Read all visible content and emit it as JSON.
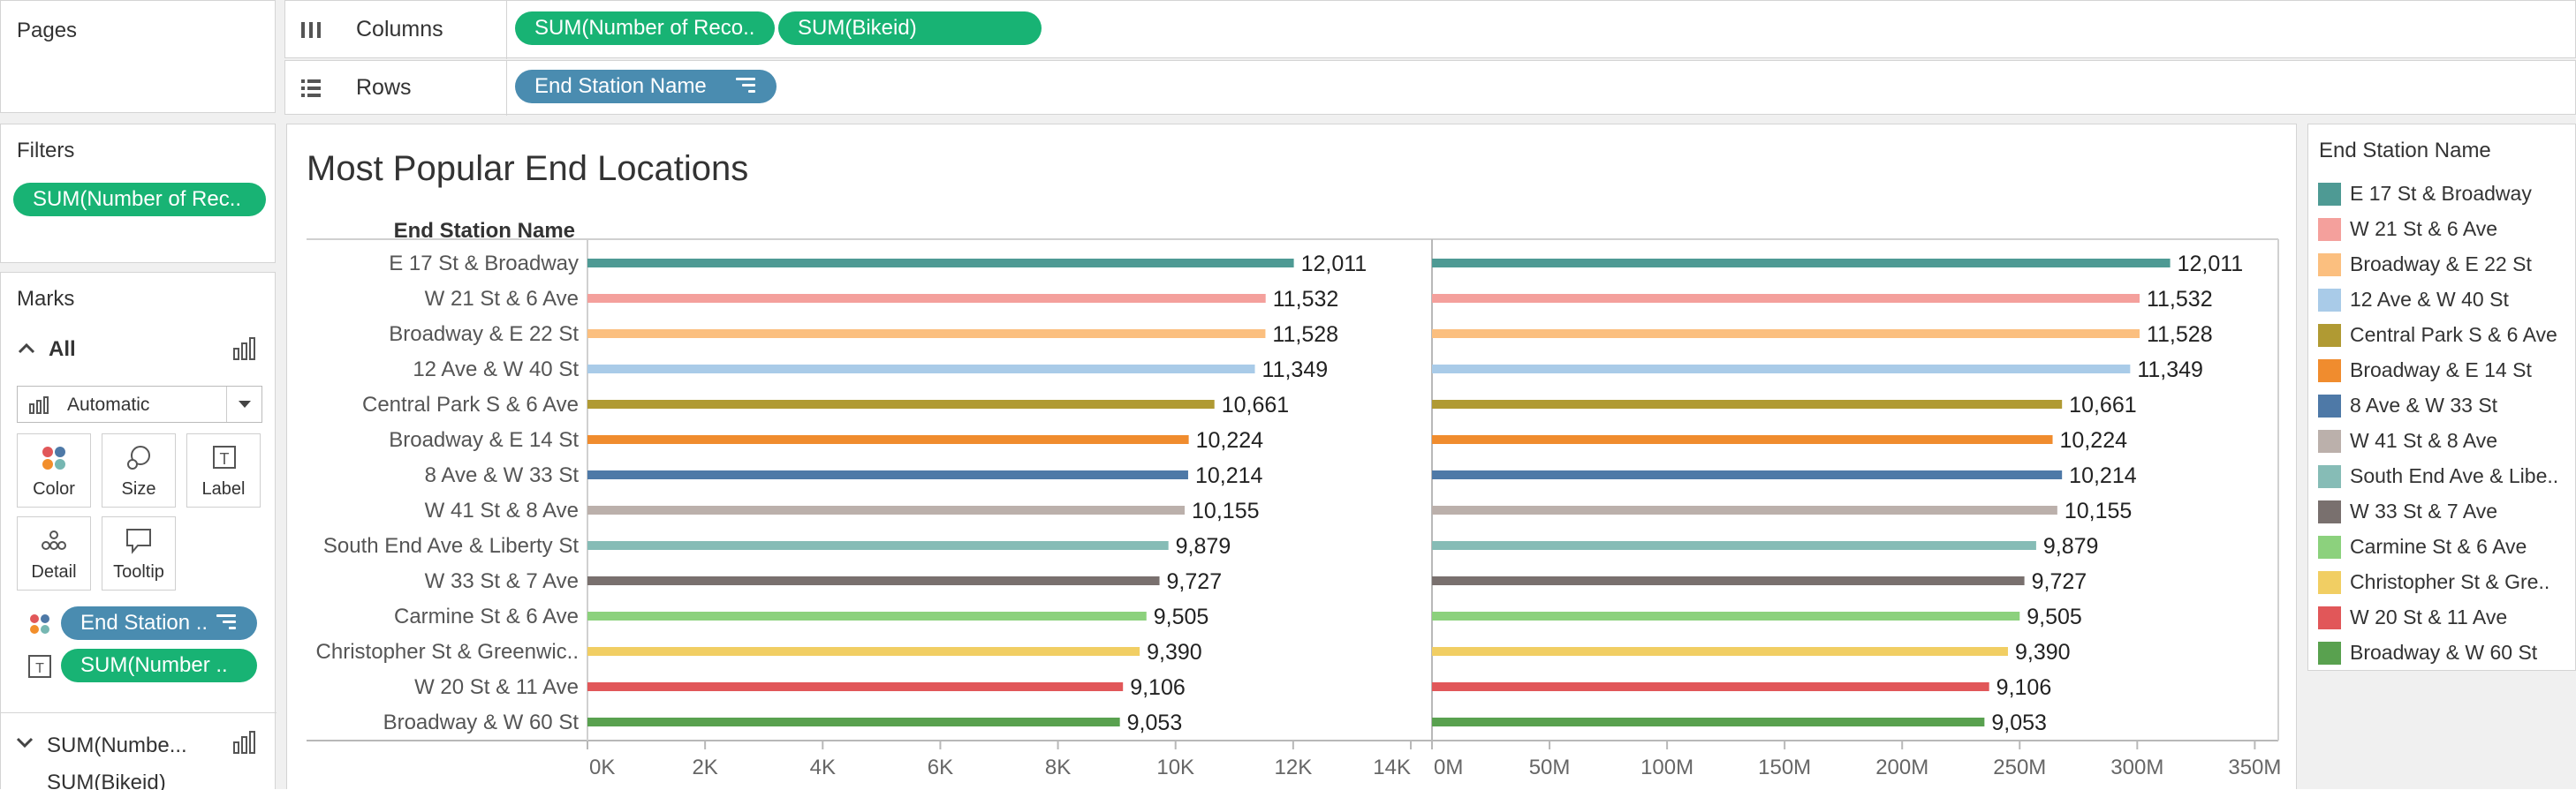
{
  "pages": {
    "title": "Pages"
  },
  "shelves": {
    "columns_label": "Columns",
    "rows_label": "Rows",
    "columns_pills": [
      "SUM(Number of Reco..",
      "SUM(Bikeid)"
    ],
    "rows_pills": [
      "End Station Name"
    ]
  },
  "filters": {
    "title": "Filters",
    "pills": [
      "SUM(Number of Rec.."
    ]
  },
  "marks": {
    "title": "Marks",
    "all_label": "All",
    "mark_type": "Automatic",
    "buttons": [
      "Color",
      "Size",
      "Label",
      "Detail",
      "Tooltip"
    ],
    "fields": [
      "End Station ..",
      "SUM(Number .."
    ],
    "sub_sections": [
      "SUM(Numbe...",
      "SUM(Bikeid)"
    ]
  },
  "legend": {
    "title": "End Station Name",
    "items": [
      {
        "label": "E 17 St & Broadway",
        "color": "#4e9a94"
      },
      {
        "label": "W 21 St & 6 Ave",
        "color": "#f4a09c"
      },
      {
        "label": "Broadway & E 22 St",
        "color": "#fbbf7f"
      },
      {
        "label": "12 Ave & W 40 St",
        "color": "#a9cbe8"
      },
      {
        "label": "Central Park S & 6 Ave",
        "color": "#b09a33"
      },
      {
        "label": "Broadway & E 14 St",
        "color": "#f08c2e"
      },
      {
        "label": "8 Ave & W 33 St",
        "color": "#4e79a7"
      },
      {
        "label": "W 41 St & 8 Ave",
        "color": "#bbb0ab"
      },
      {
        "label": "South End Ave & Libe..",
        "color": "#86bcb6"
      },
      {
        "label": "W 33 St & 7 Ave",
        "color": "#79706e"
      },
      {
        "label": "Carmine St & 6 Ave",
        "color": "#8cd17d"
      },
      {
        "label": "Christopher St & Gre..",
        "color": "#f1ce63"
      },
      {
        "label": "W 20 St & 11 Ave",
        "color": "#e15759"
      },
      {
        "label": "Broadway & W 60 St",
        "color": "#59a14f"
      }
    ]
  },
  "chart_data": {
    "type": "bar",
    "orientation": "horizontal",
    "title": "Most Popular End Locations",
    "row_header": "End Station Name",
    "categories": [
      "E 17 St & Broadway",
      "W 21 St & 6 Ave",
      "Broadway & E 22 St",
      "12 Ave & W 40 St",
      "Central Park S & 6 Ave",
      "Broadway & E 14 St",
      "8 Ave & W 33 St",
      "W 41 St & 8 Ave",
      "South End Ave & Liberty St",
      "W 33 St & 7 Ave",
      "Carmine St & 6 Ave",
      "Christopher St & Greenwic..",
      "W 20 St & 11 Ave",
      "Broadway & W 60 St"
    ],
    "panes": [
      {
        "ylim": [
          0,
          14000
        ],
        "ticks": [
          0,
          2000,
          4000,
          6000,
          8000,
          10000,
          12000,
          14000
        ],
        "tick_labels": [
          "0K",
          "2K",
          "4K",
          "6K",
          "8K",
          "10K",
          "12K",
          "14K"
        ],
        "values": [
          12011,
          11532,
          11528,
          11349,
          10661,
          10224,
          10214,
          10155,
          9879,
          9727,
          9505,
          9390,
          9106,
          9053
        ],
        "value_labels": [
          "12,011",
          "11,532",
          "11,528",
          "11,349",
          "10,661",
          "10,224",
          "10,214",
          "10,155",
          "9,879",
          "9,727",
          "9,505",
          "9,390",
          "9,106",
          "9,053"
        ]
      },
      {
        "ylim": [
          0,
          360000000
        ],
        "ticks": [
          0,
          50000000,
          100000000,
          150000000,
          200000000,
          250000000,
          300000000,
          350000000
        ],
        "tick_labels": [
          "0M",
          "50M",
          "100M",
          "150M",
          "200M",
          "250M",
          "300M",
          "350M"
        ],
        "values": [
          314000000,
          301000000,
          301000000,
          297000000,
          268000000,
          264000000,
          268000000,
          266000000,
          257000000,
          252000000,
          250000000,
          245000000,
          237000000,
          235000000
        ],
        "value_labels": [
          "12,011",
          "11,532",
          "11,528",
          "11,349",
          "10,661",
          "10,224",
          "10,214",
          "10,155",
          "9,879",
          "9,727",
          "9,505",
          "9,390",
          "9,106",
          "9,053"
        ]
      }
    ],
    "grid": false,
    "legend_position": "right"
  }
}
